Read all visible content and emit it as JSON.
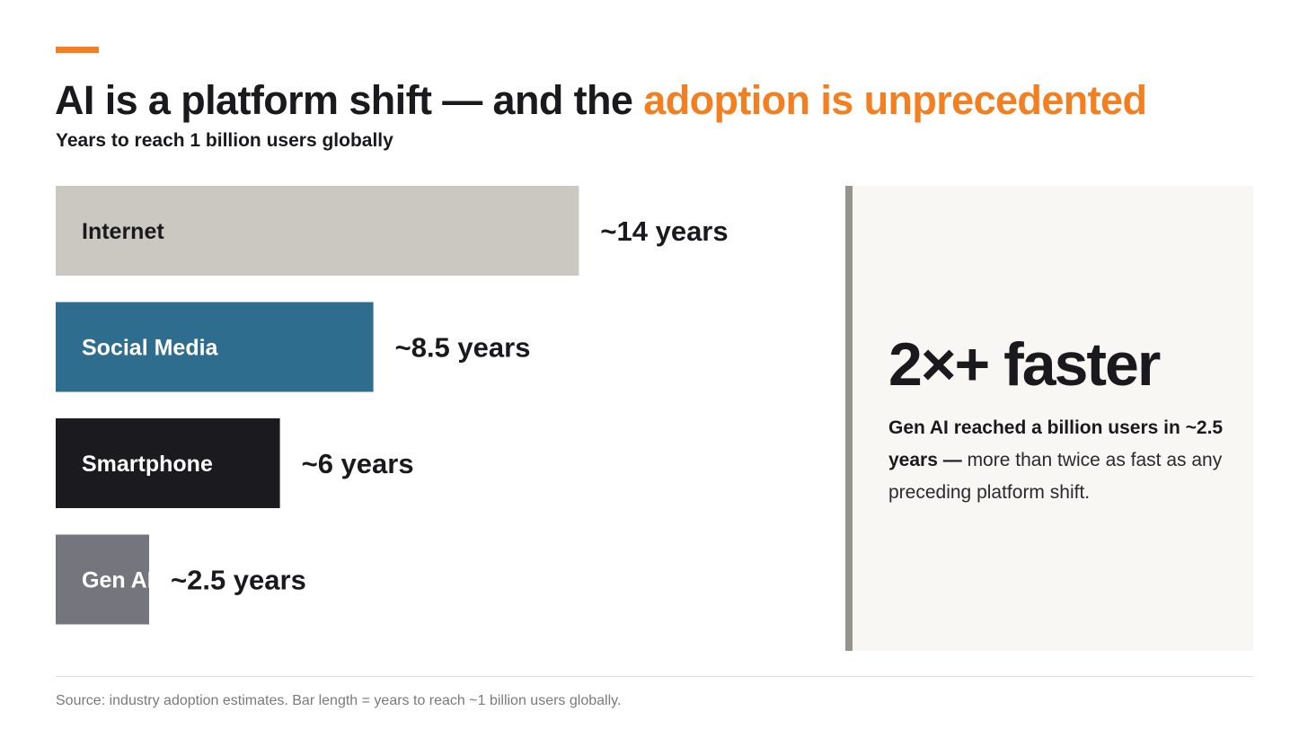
{
  "header": {
    "title_main": "AI is a platform shift — and the ",
    "title_highlight": "adoption is unprecedented",
    "subtitle": "Years to reach 1 billion users globally"
  },
  "colors": {
    "accent": "#f47f20",
    "text": "#1a1a1e",
    "callout_bg": "#f8f7f3",
    "callout_rule": "#95958d"
  },
  "chart_data": {
    "type": "bar",
    "orientation": "horizontal",
    "title": "",
    "categories": [
      "Internet",
      "Social Media",
      "Smartphone",
      "Gen AI"
    ],
    "values": [
      14,
      8.5,
      6,
      2.5
    ],
    "value_labels": [
      "~14 years",
      "~8.5 years",
      "~6 years",
      "~2.5 years"
    ],
    "bar_colors": [
      "#cbc8c1",
      "#2f6d8e",
      "#1b1b1f",
      "#75757d"
    ],
    "category_label_colors": [
      "#1a1a1e",
      "#ffffff",
      "#ffffff",
      "#ffffff"
    ],
    "xlabel": "",
    "ylabel": "",
    "xlim": [
      0,
      14
    ],
    "grid": false,
    "legend": "none"
  },
  "callout": {
    "headline": "2×+ faster",
    "bold_text": "Gen AI reached a billion users in ~2.5 years —",
    "regular_text": " more than twice as fast as any preceding platform shift."
  },
  "footer": {
    "source": "Source: industry adoption estimates. Bar length = years to reach ~1 billion users globally."
  }
}
